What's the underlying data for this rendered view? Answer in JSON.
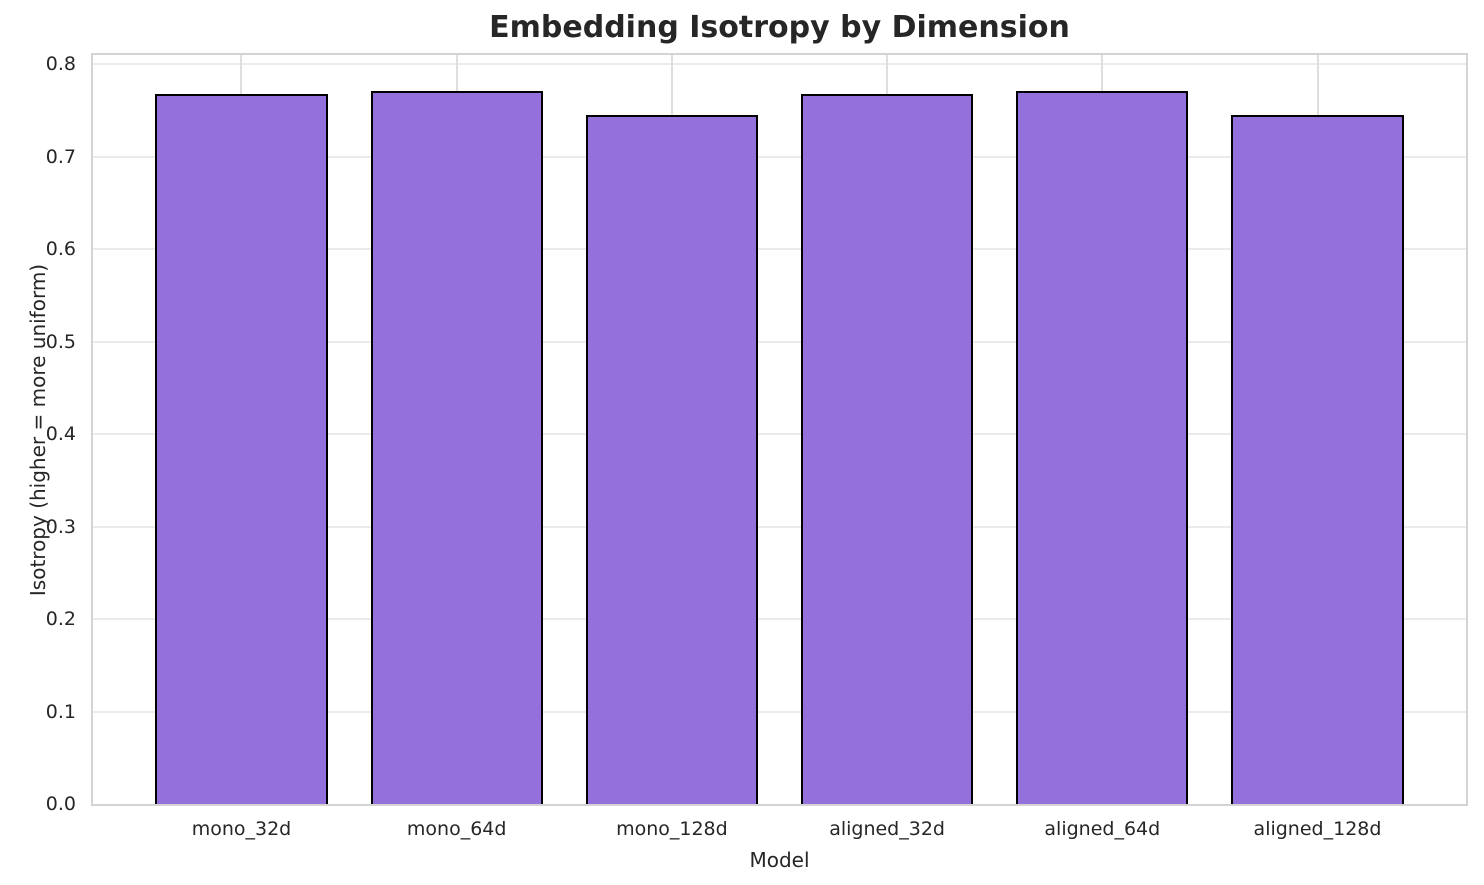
{
  "chart_data": {
    "type": "bar",
    "title": "Embedding Isotropy by Dimension",
    "xlabel": "Model",
    "ylabel": "Isotropy (higher = more uniform)",
    "categories": [
      "mono_32d",
      "mono_64d",
      "mono_128d",
      "aligned_32d",
      "aligned_64d",
      "aligned_128d"
    ],
    "values": [
      0.768,
      0.771,
      0.745,
      0.768,
      0.771,
      0.745
    ],
    "ylim": [
      0,
      0.81
    ],
    "yticks": [
      0.0,
      0.1,
      0.2,
      0.3,
      0.4,
      0.5,
      0.6,
      0.7,
      0.8
    ],
    "ytick_labels": [
      "0.0",
      "0.1",
      "0.2",
      "0.3",
      "0.4",
      "0.5",
      "0.6",
      "0.7",
      "0.8"
    ],
    "grid": "on",
    "legend": "none",
    "colors": {
      "bar_fill": "#9370DB",
      "bar_edge": "#000000",
      "grid_line": "#ebebeb",
      "spine": "#d4d4d4",
      "text": "#262626",
      "background": "#ffffff"
    }
  }
}
